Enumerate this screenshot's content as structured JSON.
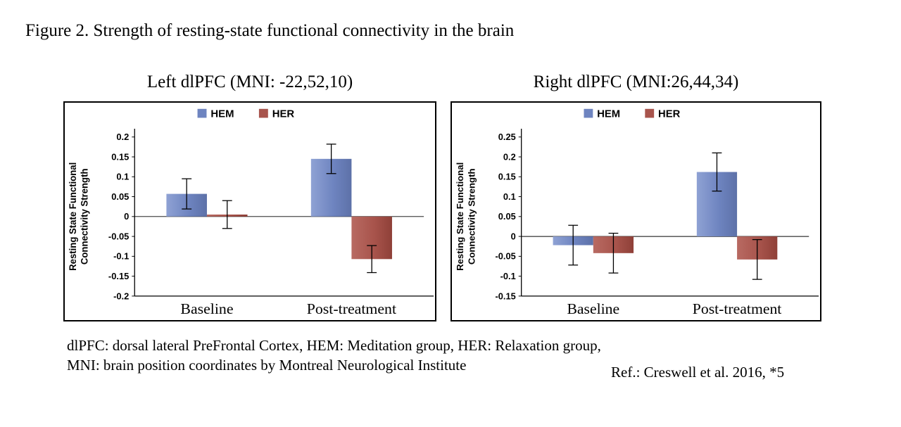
{
  "figure": {
    "title": "Figure 2. Strength of resting-state functional connectivity in the brain"
  },
  "chart_data": [
    {
      "type": "bar",
      "title": "Left dlPFC (MNI: -22,52,10)",
      "categories": [
        "Baseline",
        "Post-treatment"
      ],
      "series": [
        {
          "name": "HEM",
          "color": "#6e84c0",
          "color_light": "#8fa2d4",
          "color_dark": "#5d71a8",
          "values": [
            0.057,
            0.145
          ],
          "errors": [
            0.038,
            0.037
          ]
        },
        {
          "name": "HER",
          "color": "#a8544c",
          "color_light": "#b86a62",
          "color_dark": "#8f4038",
          "values": [
            0.005,
            -0.107
          ],
          "errors": [
            0.035,
            0.034
          ]
        }
      ],
      "ylabel": "Resting State Functional Connectivity Strength",
      "ylabel_lines": [
        "Resting State Functional",
        "Connectivity Strength"
      ],
      "ylim": [
        -0.2,
        0.2
      ],
      "ytick_step": 0.05,
      "legend_position": "top",
      "grid": false
    },
    {
      "type": "bar",
      "title": "Right dlPFC (MNI:26,44,34)",
      "categories": [
        "Baseline",
        "Post-treatment"
      ],
      "series": [
        {
          "name": "HEM",
          "color": "#6e84c0",
          "color_light": "#8fa2d4",
          "color_dark": "#5d71a8",
          "values": [
            -0.022,
            0.162
          ],
          "errors": [
            0.05,
            0.048
          ]
        },
        {
          "name": "HER",
          "color": "#a8544c",
          "color_light": "#b86a62",
          "color_dark": "#8f4038",
          "values": [
            -0.042,
            -0.058
          ],
          "errors": [
            0.05,
            0.05
          ]
        }
      ],
      "ylabel": "Resting State Functional Connectivity Strength",
      "ylabel_lines": [
        "Resting State Functional",
        "Connectivity Strength"
      ],
      "ylim": [
        -0.15,
        0.25
      ],
      "ytick_step": 0.05,
      "legend_position": "top",
      "grid": false
    }
  ],
  "footnote": {
    "line1": "dlPFC: dorsal lateral PreFrontal Cortex, HEM: Meditation group, HER: Relaxation group,",
    "line2": "MNI: brain position coordinates by Montreal Neurological Institute",
    "reference": "Ref.: Creswell et al. 2016, *5"
  }
}
